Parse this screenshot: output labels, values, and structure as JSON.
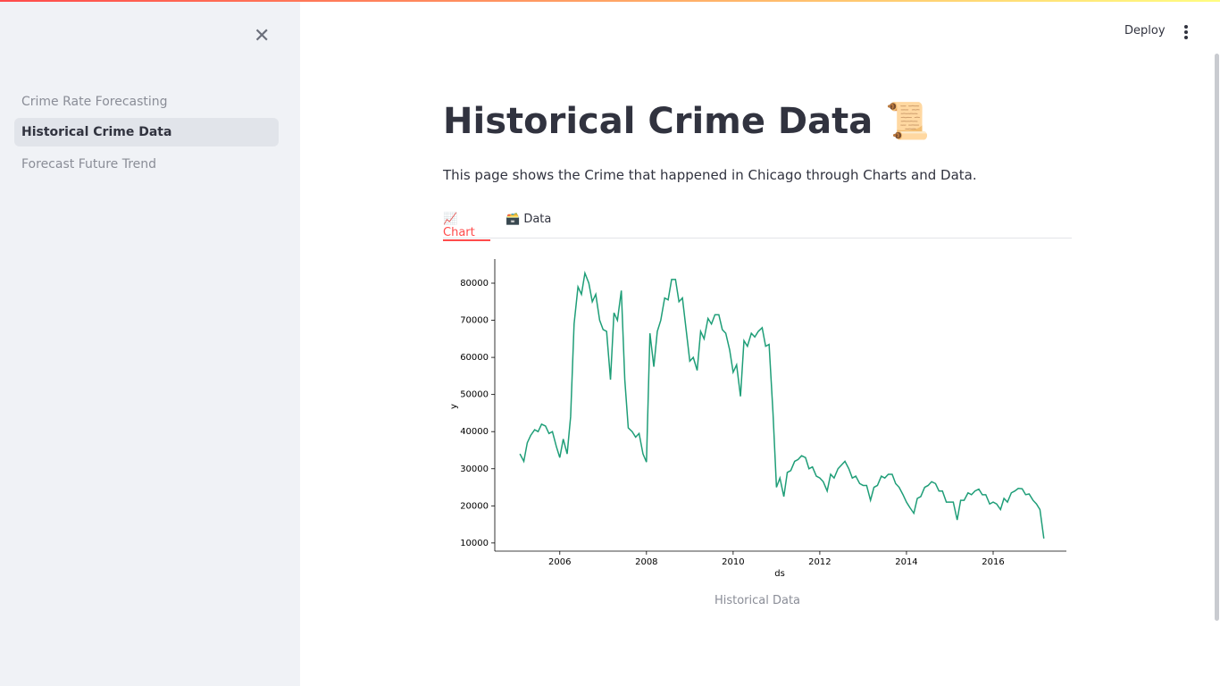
{
  "sidebar": {
    "nav": [
      "Crime Rate Forecasting",
      "Historical Crime Data",
      "Forecast Future Trend"
    ]
  },
  "header": {
    "deploy": "Deploy"
  },
  "main": {
    "title": "Historical Crime Data 📜",
    "description": "This page shows the Crime that happened in Chicago through Charts and Data.",
    "tabs": [
      "📈 Chart",
      "🗃️ Data"
    ],
    "caption": "Historical Data"
  },
  "chart_data": {
    "type": "line",
    "x_label": "ds",
    "y_label": "y",
    "color": "#1f9e78",
    "x": [
      2005.08,
      2005.17,
      2005.25,
      2005.33,
      2005.42,
      2005.5,
      2005.58,
      2005.67,
      2005.75,
      2005.83,
      2005.92,
      2006,
      2006.08,
      2006.17,
      2006.25,
      2006.33,
      2006.42,
      2006.5,
      2006.58,
      2006.67,
      2006.75,
      2006.83,
      2006.92,
      2007,
      2007.08,
      2007.17,
      2007.25,
      2007.33,
      2007.42,
      2007.5,
      2007.58,
      2007.67,
      2007.75,
      2007.83,
      2007.92,
      2008,
      2008.08,
      2008.17,
      2008.25,
      2008.33,
      2008.42,
      2008.5,
      2008.58,
      2008.67,
      2008.75,
      2008.83,
      2008.92,
      2009,
      2009.08,
      2009.17,
      2009.25,
      2009.33,
      2009.42,
      2009.5,
      2009.58,
      2009.67,
      2009.75,
      2009.83,
      2009.92,
      2010,
      2010.08,
      2010.17,
      2010.25,
      2010.33,
      2010.42,
      2010.5,
      2010.58,
      2010.67,
      2010.75,
      2010.83,
      2010.92,
      2011,
      2011.08,
      2011.17,
      2011.25,
      2011.33,
      2011.42,
      2011.5,
      2011.58,
      2011.67,
      2011.75,
      2011.83,
      2011.92,
      2012,
      2012.08,
      2012.17,
      2012.25,
      2012.33,
      2012.42,
      2012.5,
      2012.58,
      2012.67,
      2012.75,
      2012.83,
      2012.92,
      2013,
      2013.08,
      2013.17,
      2013.25,
      2013.33,
      2013.42,
      2013.5,
      2013.58,
      2013.67,
      2013.75,
      2013.83,
      2013.92,
      2014,
      2014.08,
      2014.17,
      2014.25,
      2014.33,
      2014.42,
      2014.5,
      2014.58,
      2014.67,
      2014.75,
      2014.83,
      2014.92,
      2015,
      2015.08,
      2015.17,
      2015.25,
      2015.33,
      2015.42,
      2015.5,
      2015.58,
      2015.67,
      2015.75,
      2015.83,
      2015.92,
      2016,
      2016.08,
      2016.17,
      2016.25,
      2016.33,
      2016.42,
      2016.5,
      2016.58,
      2016.67,
      2016.75,
      2016.83,
      2016.92,
      2017,
      2017.08,
      2017.17
    ],
    "values": [
      34000,
      32000,
      37000,
      39000,
      40500,
      40000,
      42000,
      41500,
      39500,
      40000,
      36000,
      33000,
      38000,
      34000,
      44000,
      69000,
      79000,
      77000,
      82700,
      80000,
      75000,
      77000,
      70000,
      67500,
      67000,
      54000,
      72000,
      70000,
      78000,
      54000,
      41000,
      40000,
      38500,
      39500,
      34000,
      31800,
      66500,
      57500,
      67000,
      70000,
      76000,
      75500,
      81000,
      81000,
      75000,
      76000,
      67000,
      59000,
      60000,
      56500,
      67000,
      65000,
      70500,
      69000,
      71500,
      71500,
      67500,
      66500,
      62000,
      56000,
      58000,
      49500,
      64500,
      63000,
      66500,
      65500,
      67000,
      68000,
      63000,
      63500,
      45000,
      25000,
      27500,
      22500,
      29000,
      29500,
      32000,
      32500,
      33500,
      33000,
      30000,
      30500,
      28000,
      27500,
      26500,
      24000,
      28500,
      27500,
      30000,
      31000,
      32000,
      30000,
      27500,
      28000,
      26000,
      25500,
      25500,
      21500,
      25000,
      25500,
      28000,
      27500,
      28500,
      28500,
      26000,
      25000,
      23000,
      21000,
      19500,
      18000,
      22000,
      22500,
      25000,
      25500,
      26500,
      26000,
      24000,
      24000,
      21000,
      21000,
      21000,
      16200,
      21500,
      21500,
      23500,
      23000,
      24000,
      24500,
      23000,
      23000,
      20500,
      21000,
      20500,
      19000,
      22000,
      21000,
      23500,
      24000,
      24700,
      24600,
      23000,
      23200,
      21500,
      20500,
      19000,
      11200
    ],
    "xlim": [
      2004.5,
      2017.69
    ],
    "xticks": [
      2006,
      2008,
      2010,
      2012,
      2014,
      2016
    ],
    "ylim": [
      7800,
      86500
    ],
    "yticks": [
      10000,
      20000,
      30000,
      40000,
      50000,
      60000,
      70000,
      80000
    ]
  }
}
